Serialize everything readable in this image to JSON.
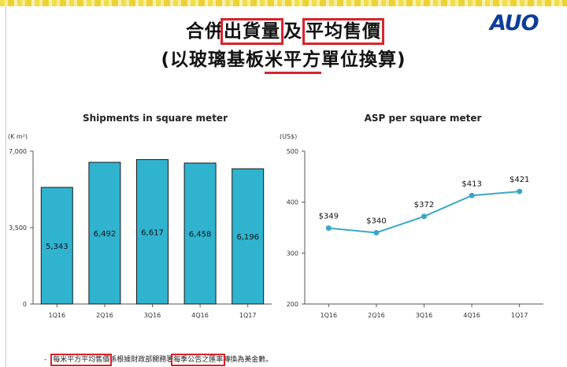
{
  "header": {
    "title_parts": [
      "合併",
      "出貨量",
      "及",
      "平均售價"
    ],
    "subtitle_parts": [
      "(以玻璃基板",
      "米平方",
      "單位換算)"
    ],
    "logo_text": "AUO"
  },
  "footnote": {
    "bullet": "-",
    "parts": [
      "每米平方平均售價",
      "係根據財政部關務署",
      "每季公告之匯率",
      "轉換為美金數。"
    ]
  },
  "colors": {
    "bar": "#2fb3cf",
    "bar_stroke": "#1a1a1a",
    "line": "#3ba6c8",
    "highlight": "#d9232d"
  },
  "chart_data": [
    {
      "type": "bar",
      "title": "Shipments in square meter",
      "unit_label": "(K m²)",
      "categories": [
        "1Q16",
        "2Q16",
        "3Q16",
        "4Q16",
        "1Q17"
      ],
      "values": [
        5343,
        6492,
        6617,
        6458,
        6196
      ],
      "value_labels": [
        "5,343",
        "6,492",
        "6,617",
        "6,458",
        "6,196"
      ],
      "yticks": [
        0,
        3500,
        7000
      ],
      "ytick_labels": [
        "0",
        "3,500",
        "7,000"
      ],
      "ylim": [
        0,
        7000
      ]
    },
    {
      "type": "line",
      "title": "ASP per square meter",
      "unit_label": "(US$)",
      "categories": [
        "1Q16",
        "2Q16",
        "3Q16",
        "4Q16",
        "1Q17"
      ],
      "values": [
        349,
        340,
        372,
        413,
        421
      ],
      "value_labels": [
        "$349",
        "$340",
        "$372",
        "$413",
        "$421"
      ],
      "yticks": [
        200,
        300,
        400,
        500
      ],
      "ytick_labels": [
        "200",
        "300",
        "400",
        "500"
      ],
      "ylim": [
        200,
        500
      ]
    }
  ]
}
